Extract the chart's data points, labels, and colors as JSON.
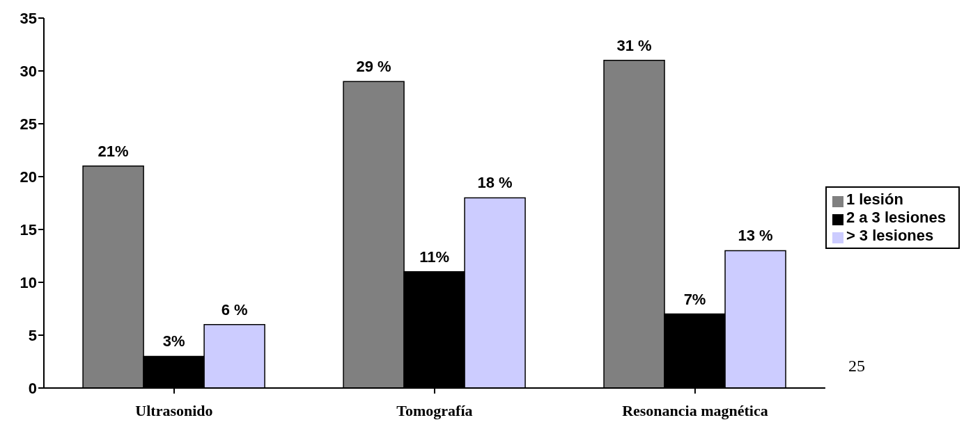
{
  "chart_data": {
    "type": "bar",
    "categories": [
      "Ultrasonido",
      "Tomografía",
      "Resonancia magnética"
    ],
    "series": [
      {
        "name": "1 lesión",
        "color": "#808080",
        "values": [
          21,
          29,
          31
        ],
        "value_labels": [
          "21%",
          "29 %",
          "31 %"
        ]
      },
      {
        "name": "2 a 3 lesiones",
        "color": "#000000",
        "values": [
          3,
          11,
          7
        ],
        "value_labels": [
          "3%",
          "11%",
          "7%"
        ]
      },
      {
        "name": "> 3 lesiones",
        "color": "#ccccff",
        "values": [
          6,
          18,
          13
        ],
        "value_labels": [
          "6 %",
          "18 %",
          "13 %"
        ]
      }
    ],
    "ylim": [
      0,
      35
    ],
    "yticks": [
      0,
      5,
      10,
      15,
      20,
      25,
      30,
      35
    ],
    "grid": false,
    "legend": "right",
    "annotations": [
      "25"
    ]
  }
}
